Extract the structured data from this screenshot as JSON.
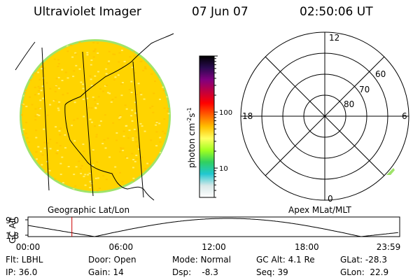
{
  "header": {
    "instrument": "Ultraviolet Imager",
    "date": "07 Jun 07",
    "time": "02:50:06 UT"
  },
  "image_panel": {
    "caption": "Geographic Lat/Lon",
    "colors": {
      "fill": "#FFD400",
      "rim": "#9FE36A",
      "speckle_light": "#FFF27A",
      "speckle_dark": "#FFC400"
    }
  },
  "colorbar": {
    "label": "photon cm",
    "label_exp1": "-2",
    "label_s": "s",
    "label_exp2": "-1",
    "ticks": [
      "100",
      "10"
    ],
    "tick_values": [
      100,
      10
    ],
    "range": [
      3,
      1000
    ],
    "scale": "log",
    "stops": [
      "#ffffff",
      "#d8e8e8",
      "#20c8d0",
      "#30d060",
      "#a0ff20",
      "#ffff60",
      "#ffc000",
      "#ff6000",
      "#ff0000",
      "#c00040",
      "#800080",
      "#2a0a50",
      "#000000"
    ]
  },
  "polar_panel": {
    "caption": "Apex MLat/MLT",
    "mlt_labels": {
      "top": "12",
      "right": "6",
      "bottom": "0",
      "left": "18"
    },
    "lat_labels": [
      "60",
      "70",
      "80"
    ],
    "lat_values": [
      60,
      70,
      80
    ]
  },
  "altitude_plot": {
    "ylabel": "GC Alt",
    "yticks": [
      "9.0",
      "1.8"
    ],
    "xticks": [
      "00:00",
      "06:00",
      "12:00",
      "18:00",
      "23:59"
    ],
    "current_time_hours": 2.835,
    "marker_color": "#cc0000"
  },
  "info": {
    "flt": "Flt: LBHL",
    "door": "Door: Open",
    "mode": "Mode: Normal",
    "gc_alt": "GC Alt: 4.1 Re",
    "glat": "GLat: -28.3",
    "ip": "IP: 36.0",
    "gain": "Gain: 14",
    "dsp": "Dsp:    -8.3",
    "seq": "Seq: 39",
    "glon": "GLon:  22.9"
  }
}
